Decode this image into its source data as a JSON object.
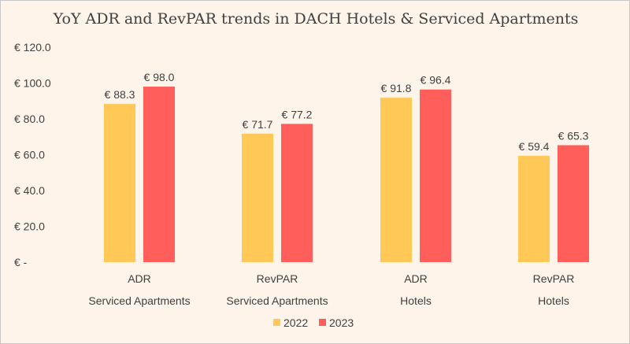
{
  "chart_data": {
    "type": "bar",
    "title": "YoY ADR and RevPAR trends in DACH Hotels & Serviced Apartments",
    "categories": [
      [
        "ADR",
        "Serviced Apartments"
      ],
      [
        "RevPAR",
        "Serviced Apartments"
      ],
      [
        "ADR",
        "Hotels"
      ],
      [
        "RevPAR",
        "Hotels"
      ]
    ],
    "series": [
      {
        "name": "2022",
        "color": "#ffc857",
        "values": [
          88.3,
          71.7,
          91.8,
          59.4
        ],
        "labels": [
          "€ 88.3",
          "€ 71.7",
          "€ 91.8",
          "€ 59.4"
        ]
      },
      {
        "name": "2023",
        "color": "#ff5e5b",
        "values": [
          98.0,
          77.2,
          96.4,
          65.3
        ],
        "labels": [
          "€ 98.0",
          "€ 77.2",
          "€ 96.4",
          "€ 65.3"
        ]
      }
    ],
    "ylim": [
      0,
      120
    ],
    "yticks": [
      0,
      20,
      40,
      60,
      80,
      100,
      120
    ],
    "ytick_labels": [
      "€ -",
      "€ 20.0",
      "€ 40.0",
      "€ 60.0",
      "€ 80.0",
      "€ 100.0",
      "€ 120.0"
    ],
    "grid": false,
    "legend": "bottom"
  }
}
